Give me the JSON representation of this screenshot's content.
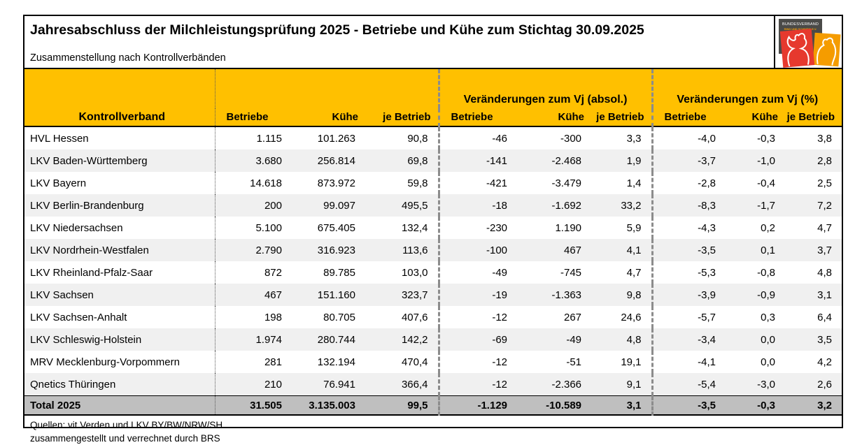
{
  "page": {
    "title": "Jahresabschluss der Milchleistungsprüfung 2025 - Betriebe und Kühe zum Stichtag 30.09.2025",
    "subtitle": "Zusammenstellung nach Kontrollverbänden"
  },
  "logo": {
    "line1": "BUNDESVERBAND",
    "line2": "RIND UND SCHWEIN E.V.",
    "colors": {
      "plate": "#4a4a48",
      "cow_tile": "#e6392e",
      "pig_tile": "#f59c00"
    }
  },
  "table": {
    "col1_header": "Kontrollverband",
    "group_titles": {
      "absolute": "Veränderungen zum Vj (absol.)",
      "percent": "Veränderungen zum Vj (%)"
    },
    "subheaders": [
      "Betriebe",
      "Kühe",
      "je Betrieb"
    ],
    "rows": [
      {
        "name": "HVL Hessen",
        "values": [
          "1.115",
          "101.263",
          "90,8",
          "-46",
          "-300",
          "3,3",
          "-4,0",
          "-0,3",
          "3,8"
        ]
      },
      {
        "name": "LKV Baden-Württemberg",
        "values": [
          "3.680",
          "256.814",
          "69,8",
          "-141",
          "-2.468",
          "1,9",
          "-3,7",
          "-1,0",
          "2,8"
        ]
      },
      {
        "name": "LKV Bayern",
        "values": [
          "14.618",
          "873.972",
          "59,8",
          "-421",
          "-3.479",
          "1,4",
          "-2,8",
          "-0,4",
          "2,5"
        ]
      },
      {
        "name": "LKV Berlin-Brandenburg",
        "values": [
          "200",
          "99.097",
          "495,5",
          "-18",
          "-1.692",
          "33,2",
          "-8,3",
          "-1,7",
          "7,2"
        ]
      },
      {
        "name": "LKV Niedersachsen",
        "values": [
          "5.100",
          "675.405",
          "132,4",
          "-230",
          "1.190",
          "5,9",
          "-4,3",
          "0,2",
          "4,7"
        ]
      },
      {
        "name": "LKV Nordrhein-Westfalen",
        "values": [
          "2.790",
          "316.923",
          "113,6",
          "-100",
          "467",
          "4,1",
          "-3,5",
          "0,1",
          "3,7"
        ]
      },
      {
        "name": "LKV Rheinland-Pfalz-Saar",
        "values": [
          "872",
          "89.785",
          "103,0",
          "-49",
          "-745",
          "4,7",
          "-5,3",
          "-0,8",
          "4,8"
        ]
      },
      {
        "name": "LKV Sachsen",
        "values": [
          "467",
          "151.160",
          "323,7",
          "-19",
          "-1.363",
          "9,8",
          "-3,9",
          "-0,9",
          "3,1"
        ]
      },
      {
        "name": "LKV Sachsen-Anhalt",
        "values": [
          "198",
          "80.705",
          "407,6",
          "-12",
          "267",
          "24,6",
          "-5,7",
          "0,3",
          "6,4"
        ]
      },
      {
        "name": "LKV Schleswig-Holstein",
        "values": [
          "1.974",
          "280.744",
          "142,2",
          "-69",
          "-49",
          "4,8",
          "-3,4",
          "0,0",
          "3,5"
        ]
      },
      {
        "name": "MRV Mecklenburg-Vorpommern",
        "values": [
          "281",
          "132.194",
          "470,4",
          "-12",
          "-51",
          "19,1",
          "-4,1",
          "0,0",
          "4,2"
        ]
      },
      {
        "name": "Qnetics Thüringen",
        "values": [
          "210",
          "76.941",
          "366,4",
          "-12",
          "-2.366",
          "9,1",
          "-5,4",
          "-3,0",
          "2,6"
        ]
      }
    ],
    "total": {
      "name": "Total 2025",
      "values": [
        "31.505",
        "3.135.003",
        "99,5",
        "-1.129",
        "-10.589",
        "3,1",
        "-3,5",
        "-0,3",
        "3,2"
      ]
    }
  },
  "footer": {
    "line1": "Quellen: vit Verden und LKV BY/BW/NRW/SH",
    "line2": "zusammengestellt und verrechnet durch BRS"
  },
  "colors": {
    "header_bg": "#ffc000",
    "total_bg": "#bfbfbf",
    "stripe_bg": "#f0f0f0",
    "border": "#000000"
  }
}
